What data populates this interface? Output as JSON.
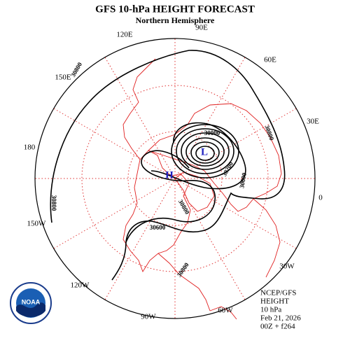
{
  "header": {
    "title": "GFS 10-hPa HEIGHT FORECAST",
    "subtitle": "Northern Hemisphere"
  },
  "map": {
    "longitude_labels": [
      "90E",
      "60E",
      "30E",
      "0",
      "30W",
      "60W",
      "90W",
      "120W",
      "150W",
      "180",
      "150E",
      "120E"
    ],
    "centers": [
      "H",
      "L"
    ],
    "contour_labels": [
      "30800",
      "30800",
      "30800",
      "30800",
      "30600",
      "30000",
      "30200",
      "30600",
      "30800"
    ]
  },
  "info": [
    "NCEP/GFS",
    "HEIGHT",
    "10 hPa",
    "Feb 21, 2026",
    "00Z + f264"
  ],
  "logo": "NOAA"
}
